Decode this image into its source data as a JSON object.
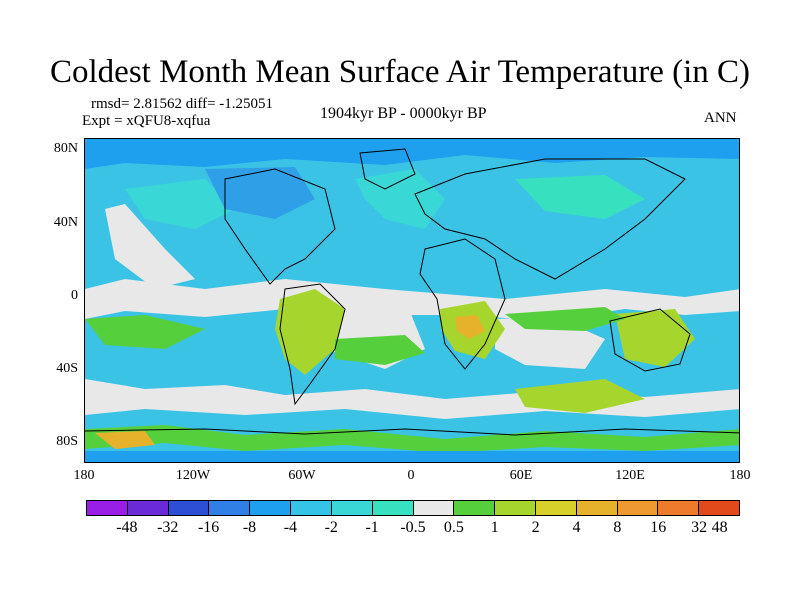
{
  "title": "Coldest Month Mean Surface Air Temperature (in C)",
  "stats": {
    "rmsd_line": "rmsd= 2.81562 diff= -1.25051",
    "expt_line": "Expt = xQFU8-xqfua",
    "period": "1904kyr BP - 0000kyr BP",
    "season": "ANN"
  },
  "axes": {
    "lat_labels": [
      "80N",
      "40N",
      "0",
      "40S",
      "80S"
    ],
    "lon_labels": [
      "180",
      "120W",
      "60W",
      "0",
      "60E",
      "120E",
      "180"
    ]
  },
  "colorbar": {
    "colors": [
      "#9a1fe6",
      "#6a2ad8",
      "#2d4fd6",
      "#2f7fe6",
      "#1fa0ef",
      "#36c3e8",
      "#39d8d6",
      "#37e1c0",
      "#e8e8e8",
      "#56cf3c",
      "#a6d62e",
      "#d8d02a",
      "#e6b22c",
      "#ee9a30",
      "#ee7a2c",
      "#e24a1c"
    ],
    "labels": [
      "-48",
      "-32",
      "-16",
      "-8",
      "-4",
      "-2",
      "-1",
      "-0.5",
      "0.5",
      "1",
      "2",
      "4",
      "8",
      "16",
      "32",
      "48"
    ]
  },
  "map_colors": {
    "ocean_base": "#3bc3e6",
    "neutral": "#e8e8e8",
    "teal": "#39d8d6",
    "light_teal": "#37e1c0",
    "deep_blue": "#1fa0ef",
    "green": "#56cf3c",
    "yellow_green": "#a6d62e",
    "yellow": "#d8d02a",
    "orange": "#e6b22c",
    "coast": "#000000"
  }
}
